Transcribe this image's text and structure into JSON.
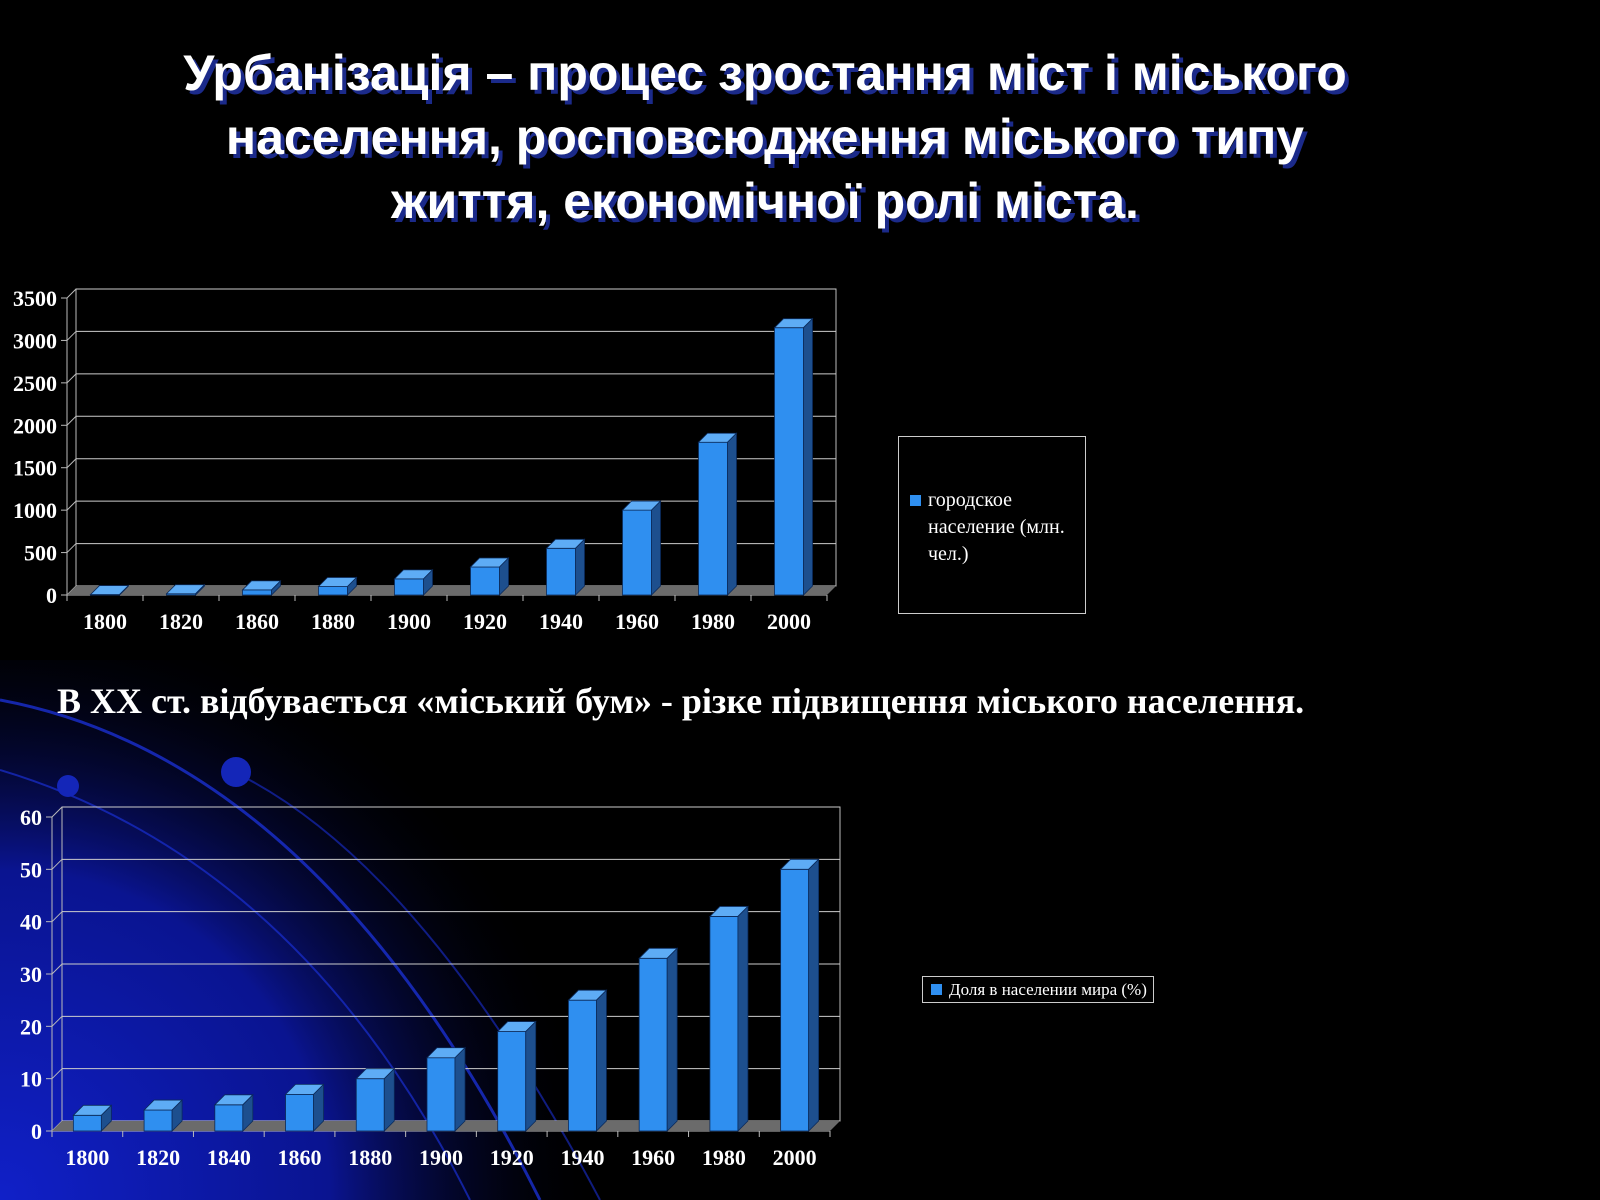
{
  "title_lines": [
    "Урбанізація – процес зростання міст і міського",
    "населення, росповсюдження  міського типу",
    "життя, економічної ролі міста."
  ],
  "subtitle": "В XX ст. відбувається «міський бум» - різке підвищення міського населення.",
  "colors": {
    "bar": "#2f8ff0",
    "background": "#000000",
    "text": "#ffffff",
    "title_shadow": "#1b2a8a"
  },
  "chart_data": [
    {
      "type": "bar",
      "categories": [
        "1800",
        "1820",
        "1860",
        "1880",
        "1900",
        "1920",
        "1940",
        "1960",
        "1980",
        "2000"
      ],
      "values": [
        5,
        15,
        60,
        100,
        190,
        330,
        550,
        1000,
        1800,
        3150
      ],
      "series": [
        {
          "name": "городское население (млн. чел.)",
          "values": [
            5,
            15,
            60,
            100,
            190,
            330,
            550,
            1000,
            1800,
            3150
          ]
        }
      ],
      "yticks": [
        "0",
        "500",
        "1000",
        "1500",
        "2000",
        "2500",
        "3000",
        "3500"
      ],
      "ylim": [
        0,
        3500
      ],
      "grid": true,
      "legend": "right",
      "style": "3d-column"
    },
    {
      "type": "bar",
      "categories": [
        "1800",
        "1820",
        "1840",
        "1860",
        "1880",
        "1900",
        "1920",
        "1940",
        "1960",
        "1980",
        "2000"
      ],
      "values": [
        3,
        4,
        5,
        7,
        10,
        14,
        19,
        25,
        33,
        41,
        50
      ],
      "series": [
        {
          "name": "Доля в населении мира (%)",
          "values": [
            3,
            4,
            5,
            7,
            10,
            14,
            19,
            25,
            33,
            41,
            50
          ]
        }
      ],
      "yticks": [
        "0",
        "10",
        "20",
        "30",
        "40",
        "50",
        "60"
      ],
      "ylim": [
        0,
        60
      ],
      "grid": true,
      "legend": "right",
      "style": "3d-column"
    }
  ]
}
